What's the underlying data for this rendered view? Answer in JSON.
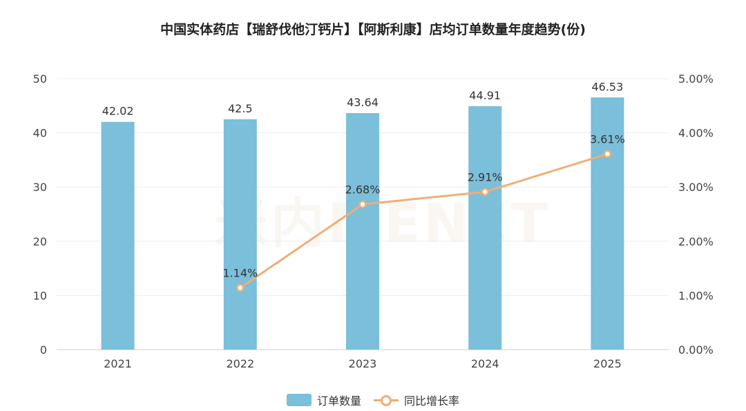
{
  "title": "中国实体药店【瑞舒伐他汀钙片】【阿斯利康】店均订单数量年度趋势(份)",
  "watermark": "米内MENET",
  "chart_data": {
    "type": "bar",
    "categories": [
      "2021",
      "2022",
      "2023",
      "2024",
      "2025"
    ],
    "series": [
      {
        "name": "订单数量",
        "type": "bar",
        "axis": "left",
        "values": [
          42.02,
          42.5,
          43.64,
          44.91,
          46.53
        ],
        "labels": [
          "42.02",
          "42.5",
          "43.64",
          "44.91",
          "46.53"
        ],
        "color": "#7bbfda"
      },
      {
        "name": "同比增长率",
        "type": "line",
        "axis": "right",
        "values": [
          null,
          1.14,
          2.68,
          2.91,
          3.61
        ],
        "labels": [
          "",
          "1.14%",
          "2.68%",
          "2.91%",
          "3.61%"
        ],
        "color": "#efae74"
      }
    ],
    "y_left": {
      "range": [
        0,
        50
      ],
      "ticks": [
        "0",
        "10",
        "20",
        "30",
        "40",
        "50"
      ]
    },
    "y_right": {
      "range": [
        0,
        5
      ],
      "ticks": [
        "0.00%",
        "1.00%",
        "2.00%",
        "3.00%",
        "4.00%",
        "5.00%"
      ]
    },
    "grid": true,
    "legend_position": "bottom"
  }
}
